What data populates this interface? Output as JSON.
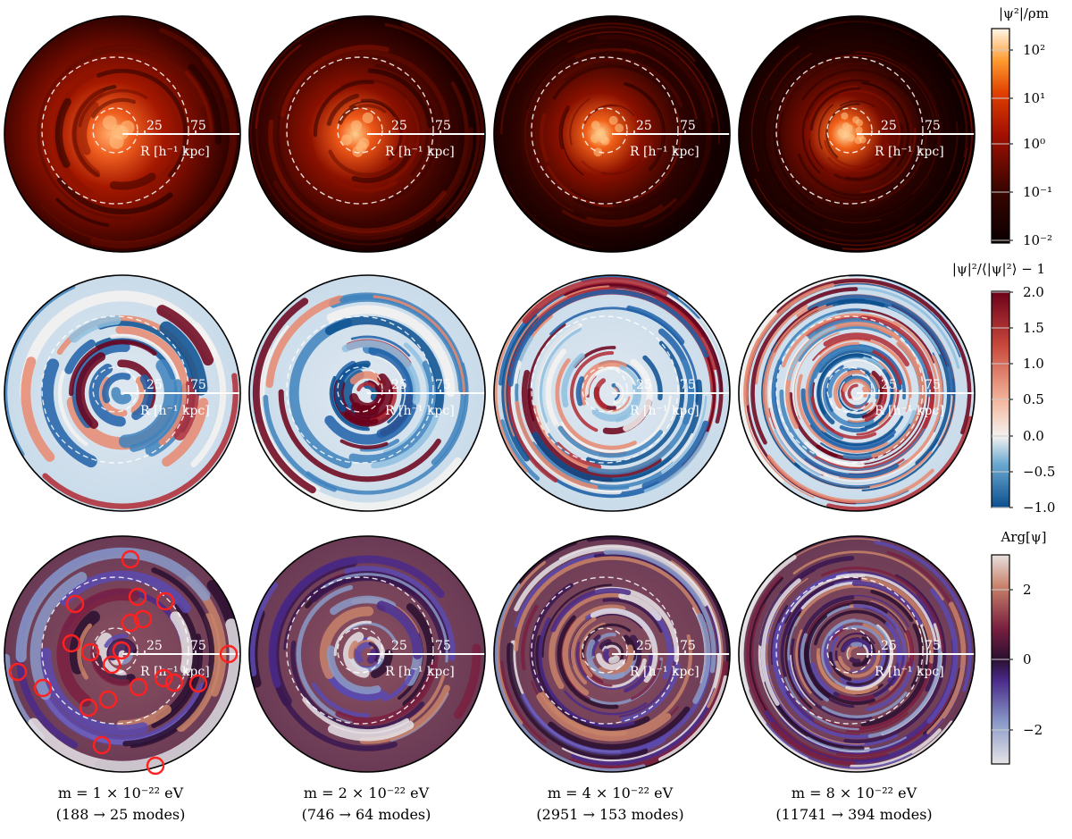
{
  "figure": {
    "rows": [
      {
        "id": "density",
        "colorbar_title": "|ψ²|/ρm",
        "colormap": "gist_heat",
        "ticks": [
          "10²",
          "10¹",
          "10⁰",
          "10⁻¹",
          "10⁻²"
        ]
      },
      {
        "id": "contrast",
        "colorbar_title": "|ψ|²/⟨|ψ|²⟩ − 1",
        "colormap": "RdBu_r",
        "ticks": [
          "2.0",
          "1.5",
          "1.0",
          "0.5",
          "0.0",
          "−0.5",
          "−1.0"
        ]
      },
      {
        "id": "phase",
        "colorbar_title": "Arg[ψ]",
        "colormap": "twilight",
        "ticks": [
          "2",
          "0",
          "−2"
        ]
      }
    ],
    "columns": [
      {
        "mass": "m = 1 × 10⁻²² eV",
        "modes": "(188 → 25 modes)",
        "complexity": 1
      },
      {
        "mass": "m = 2 × 10⁻²² eV",
        "modes": "(746 → 64 modes)",
        "complexity": 2
      },
      {
        "mass": "m = 4 × 10⁻²² eV",
        "modes": "(2951 → 153 modes)",
        "complexity": 4
      },
      {
        "mass": "m = 8 × 10⁻²² eV",
        "modes": "(11741 → 394 modes)",
        "complexity": 8
      }
    ],
    "radius_labels": [
      "25",
      "75"
    ],
    "radius_axis_label": "R [h⁻¹ kpc]",
    "marker_color": "#ff2020",
    "vortex_markers_panel": "row 3, column 1"
  }
}
